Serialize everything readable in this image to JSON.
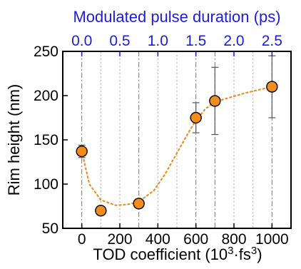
{
  "chart_data": {
    "type": "scatter",
    "xlabel_prefix": "TOD coefficient (10",
    "xlabel_sup1": "3",
    "xlabel_mid": "·fs",
    "xlabel_sup2": "3",
    "xlabel_suffix": ")",
    "ylabel": "Rim height (nm)",
    "top_xlabel": "Modulated pulse duration (ps)",
    "xlim": [
      -100,
      1100
    ],
    "ylim": [
      50,
      250
    ],
    "x_ticks": [
      0,
      200,
      400,
      600,
      800,
      1000
    ],
    "y_ticks": [
      50,
      100,
      150,
      200,
      250
    ],
    "top_ticks": [
      "0.0",
      "0.5",
      "1.0",
      "1.5",
      "2.0",
      "2.5"
    ],
    "top_tick_positions": [
      0,
      200,
      400,
      600,
      800,
      1000
    ],
    "vertical_dashdot_lines": [
      0,
      300,
      600,
      700,
      1000
    ],
    "vertical_dotted_lines": [
      100,
      200,
      400,
      500,
      800,
      900
    ],
    "series": [
      {
        "x": [
          0,
          100,
          300,
          600,
          700,
          1000
        ],
        "y": [
          137,
          70,
          78,
          175,
          194,
          210
        ],
        "err": [
          7,
          3,
          5,
          17,
          38,
          35
        ]
      }
    ],
    "fit_curve": {
      "x": [
        0,
        40,
        100,
        180,
        240,
        300,
        380,
        440,
        500,
        560,
        600,
        650,
        700,
        780,
        860,
        940,
        1000
      ],
      "y": [
        137,
        100,
        82,
        76,
        77,
        80,
        93,
        112,
        135,
        158,
        172,
        185,
        193,
        198,
        203,
        207,
        210
      ]
    },
    "colors": {
      "marker_fill": "#f28c1c",
      "marker_edge": "#000000",
      "fit_line": "#f28c1c",
      "top_axis": "#1c1cdc",
      "grid_dashdot": "#777777",
      "grid_dotted": "#aaaaaa"
    }
  }
}
